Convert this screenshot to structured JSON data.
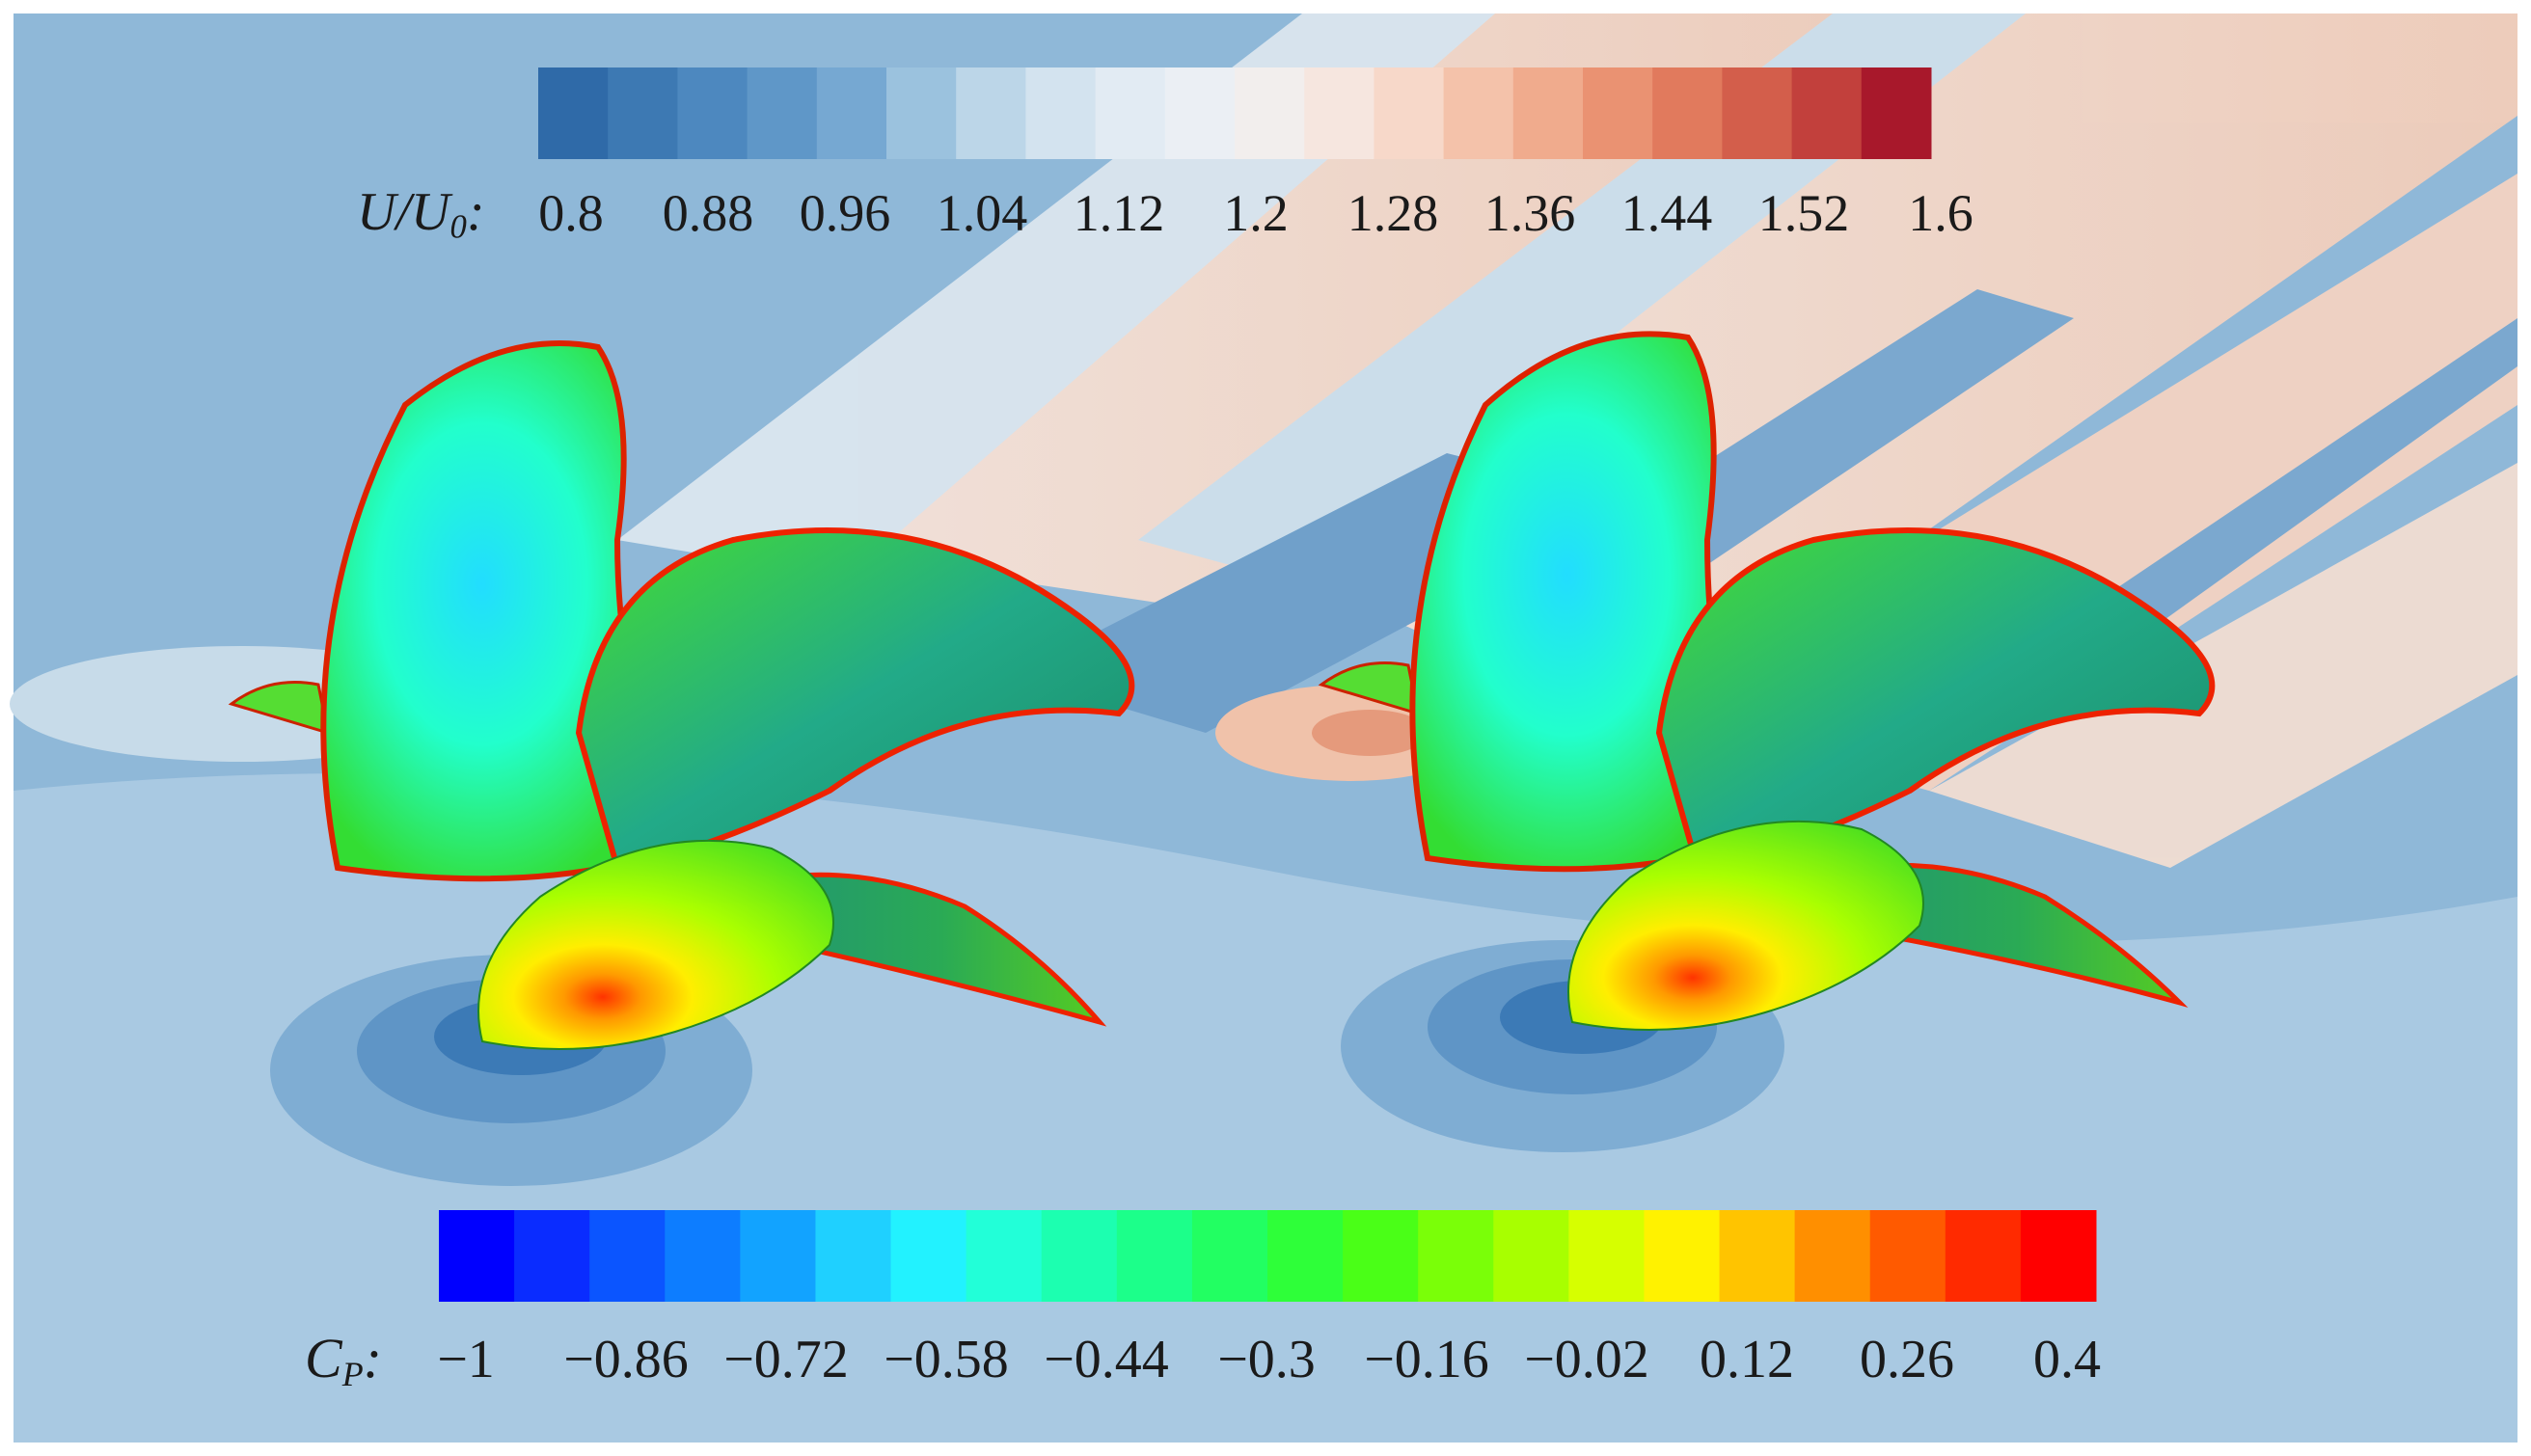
{
  "velocity_legend": {
    "variable_main": "U/U",
    "variable_sub": "0",
    "variable_suffix": ":",
    "ticks": [
      "0.8",
      "0.88",
      "0.96",
      "1.04",
      "1.12",
      "1.2",
      "1.28",
      "1.36",
      "1.44",
      "1.52",
      "1.6"
    ],
    "colors": [
      "#2f6aa8",
      "#3d79b3",
      "#4d88bf",
      "#5f97c8",
      "#76a8d2",
      "#9bc2de",
      "#bcd6e8",
      "#d3e3ef",
      "#e2ebf3",
      "#ebeff4",
      "#f2eeed",
      "#f6e6df",
      "#f7d8c9",
      "#f4c2aa",
      "#f0ab8d",
      "#ea9272",
      "#e17a5d",
      "#d35e4b",
      "#c2403c",
      "#a8182b"
    ]
  },
  "pressure_legend": {
    "variable_main": "C",
    "variable_sub": "P",
    "variable_suffix": ":",
    "ticks": [
      "−1",
      "−0.86",
      "−0.72",
      "−0.58",
      "−0.44",
      "−0.3",
      "−0.16",
      "−0.02",
      "0.12",
      "0.26",
      "0.4"
    ],
    "colors": [
      "#0000ff",
      "#0a2cff",
      "#0b55ff",
      "#0d7dff",
      "#12a3ff",
      "#1fd0ff",
      "#22f2ff",
      "#22ffd8",
      "#1cffb0",
      "#1cff8a",
      "#22ff62",
      "#2eff39",
      "#4aff17",
      "#7aff08",
      "#a8ff00",
      "#d6ff00",
      "#fff200",
      "#ffc400",
      "#ff8f00",
      "#ff5a00",
      "#ff2a00",
      "#ff0000"
    ]
  },
  "colors": {
    "background_flow": "#8fb8d8",
    "blade_green": "#33cc33",
    "blade_cyan": "#2de8f0",
    "blade_edge_red": "#ff2200"
  }
}
